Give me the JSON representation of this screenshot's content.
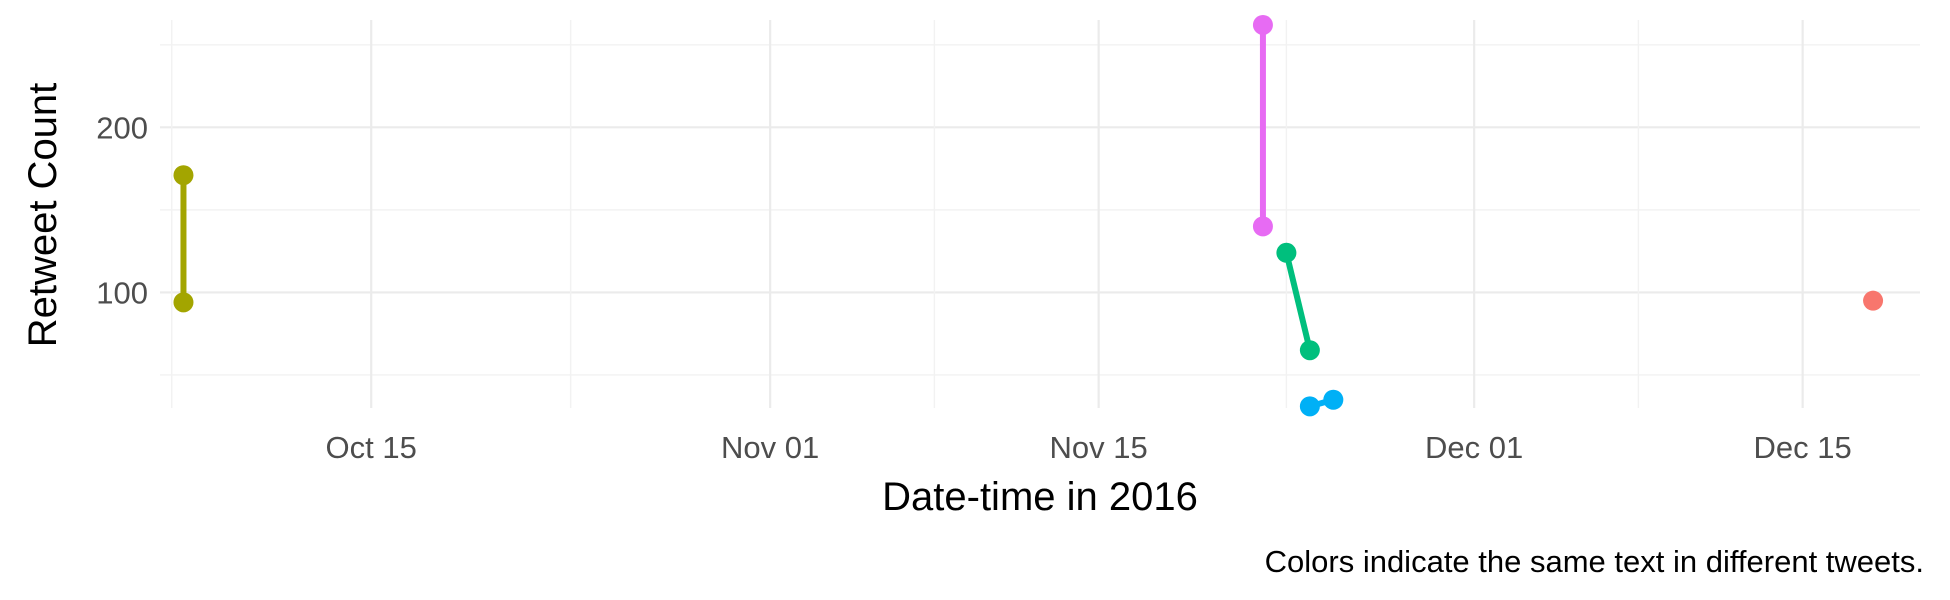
{
  "chart_data": {
    "type": "line",
    "xlabel": "Date-time in 2016",
    "ylabel": "Retweet Count",
    "caption": "Colors indicate the same text in different tweets.",
    "x_tick_labels": [
      "Oct 15",
      "Nov 01",
      "Nov 15",
      "Dec 01",
      "Dec 15"
    ],
    "x_ticks": [
      "2016-10-15",
      "2016-11-01",
      "2016-11-15",
      "2016-12-01",
      "2016-12-15"
    ],
    "y_ticks": [
      100,
      200
    ],
    "xlim": [
      "2016-10-06",
      "2016-12-20"
    ],
    "ylim": [
      30,
      265
    ],
    "grid": true,
    "legend": "none",
    "series": [
      {
        "color": "#a3a500",
        "points": [
          {
            "x": "2016-10-07",
            "y": 171
          },
          {
            "x": "2016-10-07",
            "y": 94
          }
        ]
      },
      {
        "color": "#e76bf3",
        "points": [
          {
            "x": "2016-11-22",
            "y": 262
          },
          {
            "x": "2016-11-22",
            "y": 140
          }
        ]
      },
      {
        "color": "#00bf7d",
        "points": [
          {
            "x": "2016-11-23",
            "y": 124
          },
          {
            "x": "2016-11-24",
            "y": 65
          }
        ]
      },
      {
        "color": "#00b0f6",
        "points": [
          {
            "x": "2016-11-24",
            "y": 31
          },
          {
            "x": "2016-11-25",
            "y": 35
          }
        ]
      },
      {
        "color": "#f8766d",
        "points": [
          {
            "x": "2016-12-18",
            "y": 95
          }
        ]
      }
    ]
  }
}
